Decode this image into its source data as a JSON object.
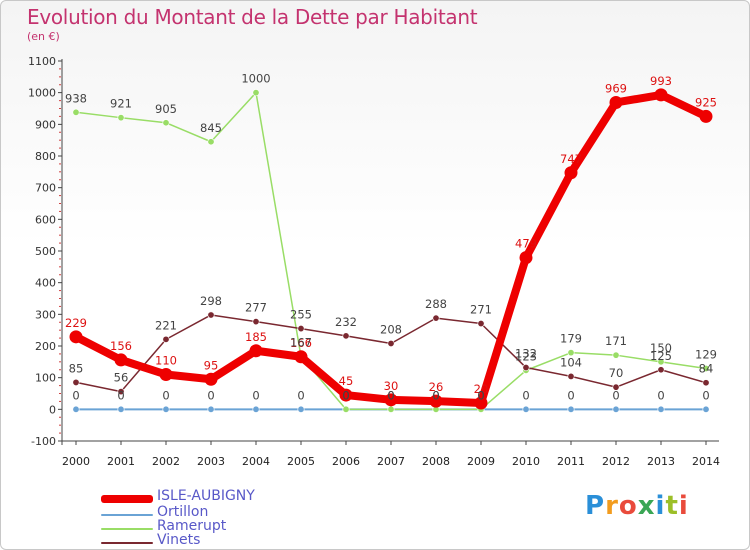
{
  "header": {
    "title": "Evolution du Montant de la Dette par Habitant",
    "unit": "(en €)"
  },
  "logo": {
    "text": "Proxiti",
    "colors": [
      "#2a8fd8",
      "#f29c1f",
      "#e94b3c",
      "#3aa655",
      "#2a8fd8",
      "#9cbf28",
      "#e94b3c"
    ]
  },
  "chart_data": {
    "type": "line",
    "x": [
      "2000",
      "2001",
      "2002",
      "2003",
      "2004",
      "2005",
      "2006",
      "2007",
      "2008",
      "2009",
      "2010",
      "2011",
      "2012",
      "2013",
      "2014"
    ],
    "ylim": [
      -100,
      1100
    ],
    "yticks": [
      -100,
      0,
      100,
      200,
      300,
      400,
      500,
      600,
      700,
      800,
      900,
      1000,
      1100
    ],
    "grid": false,
    "legend_position": "bottom-left",
    "series": [
      {
        "name": "ISLE-AUBIGNY",
        "color": "#ee0000",
        "width": 8,
        "values": [
          229,
          156,
          110,
          95,
          185,
          166,
          45,
          30,
          26,
          20,
          479,
          747,
          969,
          993,
          925
        ]
      },
      {
        "name": "Ortillon",
        "color": "#6aa3d5",
        "width": 2,
        "values": [
          0,
          0,
          0,
          0,
          0,
          0,
          0,
          0,
          0,
          0,
          0,
          0,
          0,
          0,
          0
        ]
      },
      {
        "name": "Ramerupt",
        "color": "#99dd66",
        "width": 1.5,
        "values": [
          938,
          921,
          905,
          845,
          1000,
          167,
          0,
          0,
          0,
          0,
          123,
          179,
          171,
          150,
          129
        ]
      },
      {
        "name": "Vinets",
        "color": "#7a2830",
        "width": 1.5,
        "values": [
          85,
          56,
          221,
          298,
          277,
          255,
          232,
          208,
          288,
          271,
          132,
          104,
          70,
          125,
          84
        ]
      }
    ]
  }
}
